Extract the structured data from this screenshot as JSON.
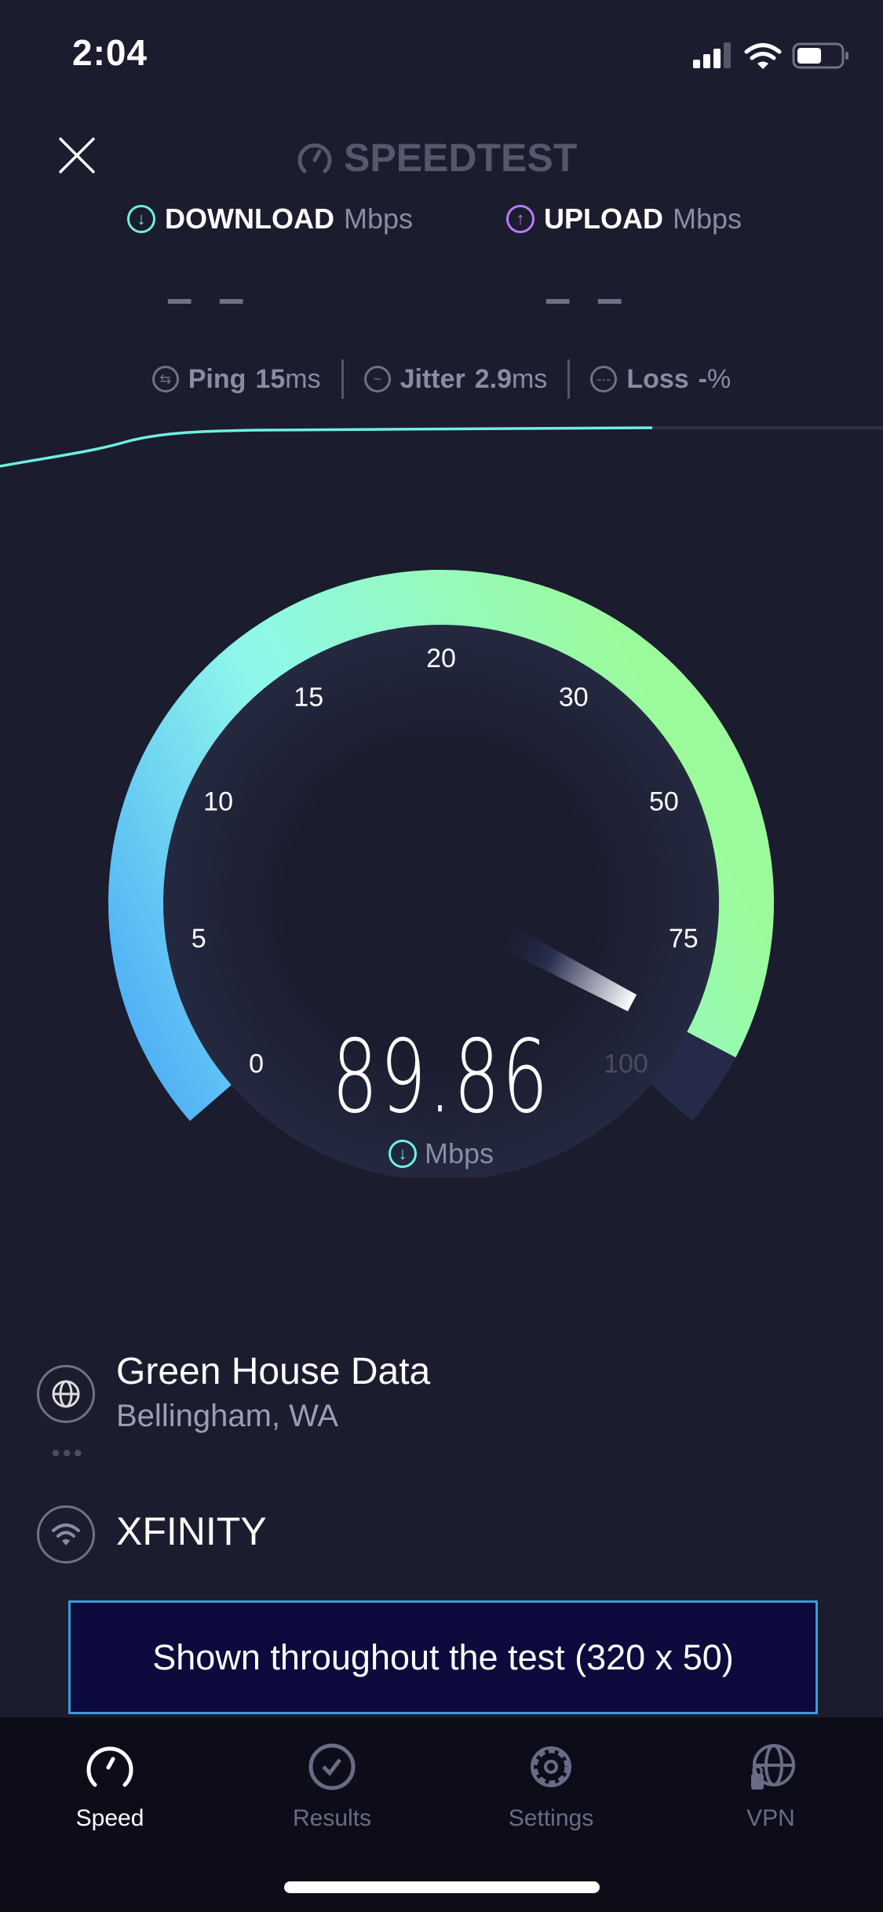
{
  "status_bar": {
    "time": "2:04",
    "signal_bars": 3,
    "battery_percent": 50
  },
  "header": {
    "close_icon": "close-icon",
    "logo": "SPEEDTEST"
  },
  "download": {
    "label": "DOWNLOAD",
    "unit": "Mbps",
    "value": "– –",
    "color": "#6ff0e0"
  },
  "upload": {
    "label": "UPLOAD",
    "unit": "Mbps",
    "value": "– –",
    "color": "#b77cf5"
  },
  "stats": {
    "ping": {
      "label": "Ping",
      "value": "15",
      "unit": "ms"
    },
    "jitter": {
      "label": "Jitter",
      "value": "2.9",
      "unit": "ms"
    },
    "loss": {
      "label": "Loss",
      "value": "-",
      "unit": "%"
    }
  },
  "gauge": {
    "ticks": [
      "0",
      "5",
      "10",
      "15",
      "20",
      "30",
      "50",
      "75",
      "100"
    ],
    "value": 89.86,
    "value_text": "89.86",
    "unit": "Mbps"
  },
  "server": {
    "name": "Green House Data",
    "location": "Bellingham, WA"
  },
  "isp": {
    "name": "XFINITY"
  },
  "ad": {
    "text": "Shown throughout the test (320 x 50)"
  },
  "tabs": [
    {
      "label": "Speed",
      "icon": "speed-icon",
      "active": true
    },
    {
      "label": "Results",
      "icon": "check-circle-icon"
    },
    {
      "label": "Settings",
      "icon": "gear-icon"
    },
    {
      "label": "VPN",
      "icon": "globe-lock-icon"
    }
  ]
}
